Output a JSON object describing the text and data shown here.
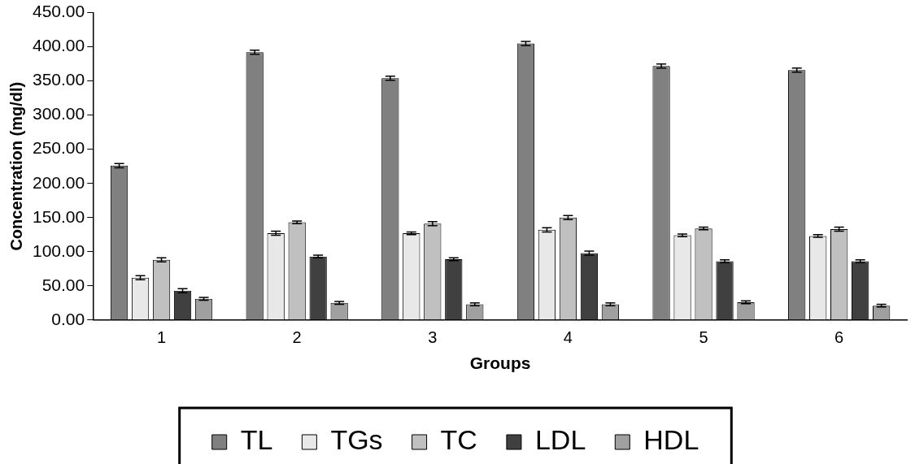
{
  "chart_data": {
    "type": "bar",
    "xlabel": "Groups",
    "ylabel": "Concentration (mg/dl)",
    "categories": [
      "1",
      "2",
      "3",
      "4",
      "5",
      "6"
    ],
    "series": [
      {
        "name": "TL",
        "color": "#808080",
        "values": [
          226,
          392,
          354,
          405,
          372,
          366
        ],
        "errors": [
          3,
          3,
          3,
          3,
          3,
          3
        ]
      },
      {
        "name": "TGs",
        "color": "#e8e8e8",
        "values": [
          62,
          127,
          127,
          132,
          124,
          123
        ],
        "errors": [
          3,
          3,
          2,
          3,
          2,
          2
        ]
      },
      {
        "name": "TC",
        "color": "#c0c0c0",
        "values": [
          88,
          143,
          141,
          150,
          134,
          133
        ],
        "errors": [
          3,
          2,
          3,
          3,
          2,
          3
        ]
      },
      {
        "name": "LDL",
        "color": "#404040",
        "values": [
          43,
          93,
          89,
          98,
          86,
          86
        ],
        "errors": [
          3,
          2,
          2,
          3,
          2,
          2
        ]
      },
      {
        "name": "HDL",
        "color": "#a0a0a0",
        "values": [
          31,
          25,
          23,
          23,
          26,
          21
        ],
        "errors": [
          2,
          2,
          2,
          2,
          2,
          2
        ]
      }
    ],
    "ylim": [
      0,
      450
    ],
    "yticks": [
      {
        "value": 0,
        "label": "0.00"
      },
      {
        "value": 50,
        "label": "50.00"
      },
      {
        "value": 100,
        "label": "100.00"
      },
      {
        "value": 150,
        "label": "150.00"
      },
      {
        "value": 200,
        "label": "200.00"
      },
      {
        "value": 250,
        "label": "250.00"
      },
      {
        "value": 300,
        "label": "300.00"
      },
      {
        "value": 350,
        "label": "350.00"
      },
      {
        "value": 400,
        "label": "400.00"
      },
      {
        "value": 450,
        "label": "450.00"
      }
    ],
    "grid": false,
    "legend": "bottom"
  }
}
